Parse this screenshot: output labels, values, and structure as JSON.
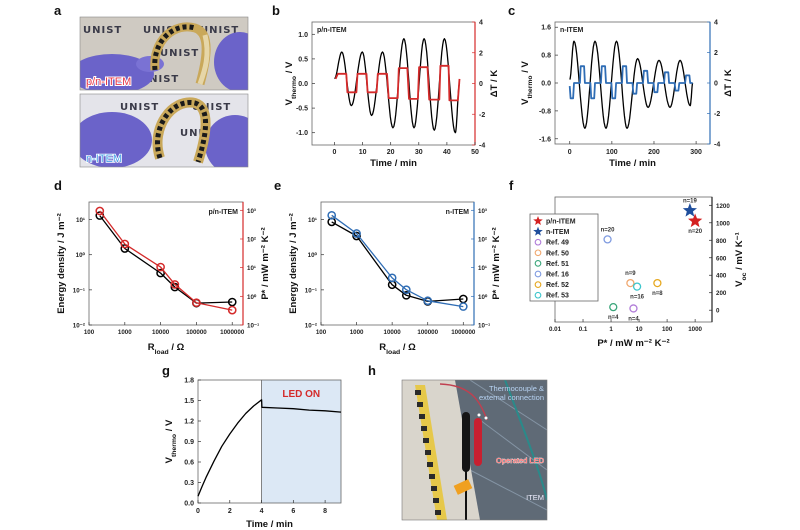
{
  "figure": {
    "panel_labels": {
      "a": "a",
      "b": "b",
      "c": "c",
      "d": "d",
      "e": "e",
      "f": "f",
      "g": "g",
      "h": "h"
    }
  },
  "panel_a": {
    "watermark": "UNIST",
    "photo_top_label": "p/n-ITEM",
    "photo_top_label_color": "#e8394a",
    "photo_bottom_label": "n-ITEM",
    "photo_bottom_label_color": "#4aa0e8"
  },
  "panel_h": {
    "thermocouple_line1": "Thermocouple &",
    "thermocouple_line2": "external connection",
    "led_label": "Operated LED",
    "item_label": "ITEM"
  },
  "chart_data": [
    {
      "panel": "b",
      "type": "line",
      "inset_label": "p/n-ITEM",
      "xlabel": {
        "base": "Time / min"
      },
      "ylabel": {
        "base": "V",
        "sub": "thermo",
        "tail": " / V"
      },
      "y2label": {
        "base": "ΔT / K"
      },
      "xlim": [
        -8,
        50
      ],
      "ylim": [
        -1.25,
        1.25
      ],
      "y2lim": [
        -4,
        4
      ],
      "xticks": [
        0,
        10,
        20,
        30,
        40,
        50
      ],
      "xtick_labels": [
        "0",
        "10",
        "20",
        "30",
        "40",
        "50"
      ],
      "yticks": [
        -1,
        -0.5,
        0,
        0.5,
        1
      ],
      "ytick_labels": [
        "-1.0",
        "-0.5",
        "0.0",
        "0.5",
        "1.0"
      ],
      "y2ticks": [
        -4,
        -2,
        0,
        2,
        4
      ],
      "y2tick_labels": [
        "-4",
        "-2",
        "0",
        "2",
        "4"
      ],
      "y2_color": "#d42a2a",
      "series": [
        {
          "axis": "left",
          "color": "#000000",
          "x": [
            0,
            2.6,
            6.0,
            9.9,
            13.2,
            17.1,
            20.8,
            24.7,
            28.3,
            31.9,
            35.5,
            39.1,
            43.0,
            44.5
          ],
          "y": [
            0.1,
            0.64,
            -0.45,
            0.64,
            -0.65,
            0.64,
            -0.9,
            0.91,
            -0.9,
            0.91,
            -0.95,
            0.91,
            -1.0,
            0.0
          ]
        },
        {
          "axis": "right",
          "color": "#d42a2a",
          "x": [
            0.4,
            1.2,
            4.2,
            4.6,
            7.8,
            8.2,
            11.4,
            11.8,
            15.0,
            15.4,
            18.7,
            19.3,
            22.5,
            22.9,
            25.9,
            26.5,
            29.7,
            30.1,
            33.1,
            33.7,
            37.3,
            37.7,
            40.6,
            40.9,
            43.9,
            44.5
          ],
          "y": [
            0.3,
            0.63,
            0.63,
            -0.57,
            -0.57,
            0.63,
            0.63,
            -0.57,
            -0.57,
            0.63,
            0.63,
            -0.95,
            -0.95,
            1.0,
            1.0,
            -1.0,
            -1.0,
            1.06,
            1.06,
            -1.05,
            -1.05,
            1.15,
            1.15,
            -1.1,
            -1.1,
            0.3
          ]
        }
      ]
    },
    {
      "panel": "c",
      "type": "line",
      "inset_label": "n-ITEM",
      "xlabel": {
        "base": "Time / min"
      },
      "ylabel": {
        "base": "V",
        "sub": "thermo",
        "tail": " / V"
      },
      "y2label": {
        "base": "ΔT / K"
      },
      "xlim": [
        -35,
        333
      ],
      "ylim": [
        -1.75,
        1.75
      ],
      "y2lim": [
        -4,
        4
      ],
      "xticks": [
        0,
        100,
        200,
        300
      ],
      "xtick_labels": [
        "0",
        "100",
        "200",
        "300"
      ],
      "yticks": [
        -1.6,
        -0.8,
        0,
        0.8,
        1.6
      ],
      "ytick_labels": [
        "-1.6",
        "-0.8",
        "0.0",
        "0.8",
        "1.6"
      ],
      "y2ticks": [
        -4,
        -2,
        0,
        2,
        4
      ],
      "y2tick_labels": [
        "-4",
        "-2",
        "0",
        "2",
        "4"
      ],
      "y2_color": "#2f6db5",
      "series": [
        {
          "axis": "left",
          "color": "#000000",
          "x": [
            0,
            10,
            36,
            60,
            86,
            111,
            136,
            161,
            186,
            212,
            238,
            262,
            286,
            292
          ],
          "y": [
            0.1,
            1.2,
            -1.3,
            1.2,
            -1.3,
            1.2,
            -1.3,
            0.7,
            -0.7,
            0.65,
            -0.7,
            0.65,
            -0.65,
            0.0
          ]
        },
        {
          "axis": "right",
          "color": "#2f6db5",
          "x": [
            0,
            2,
            8,
            10,
            24,
            26,
            34,
            36,
            49,
            51,
            58,
            60,
            74,
            76,
            84,
            86,
            99,
            101,
            108,
            110,
            124,
            126,
            134,
            136,
            149,
            151,
            158,
            160,
            174,
            176,
            184,
            186,
            199,
            201,
            208,
            210,
            224,
            226,
            234,
            236,
            249,
            251,
            258,
            260,
            274,
            276,
            284,
            286,
            292
          ],
          "y": [
            -0.2,
            -1.0,
            -1.0,
            0,
            0,
            1.1,
            1.1,
            0,
            0,
            -1.0,
            -1.0,
            0,
            0,
            1.1,
            1.1,
            0,
            0,
            -1.0,
            -1.0,
            0,
            0,
            1.1,
            1.1,
            0,
            0,
            -0.7,
            -0.7,
            0,
            0,
            0.8,
            0.8,
            0,
            0,
            -0.6,
            -0.6,
            0,
            0,
            0.7,
            0.7,
            0,
            0,
            -0.5,
            -0.5,
            0,
            0,
            0.5,
            0.5,
            0,
            0
          ]
        }
      ]
    },
    {
      "panel": "d",
      "type": "line",
      "inset_label": "p/n-ITEM",
      "xlabel": {
        "base": "R",
        "sub": "load",
        "tail": " / Ω"
      },
      "ylabel": {
        "base": "Energy density / J m⁻²"
      },
      "y2label": {
        "base": "P* / mW m⁻² K⁻²"
      },
      "xscale": "log",
      "yscale": "log",
      "y2scale": "log",
      "xlim": [
        100,
        2000000
      ],
      "ylim": [
        0.01,
        31.6
      ],
      "y2lim": [
        0.1,
        1950
      ],
      "xticks": [
        100,
        1000,
        10000,
        100000,
        1000000
      ],
      "xtick_labels": [
        "100",
        "1000",
        "10000",
        "100000",
        "1000000"
      ],
      "yticks": [
        0.01,
        0.1,
        1,
        10
      ],
      "ytick_labels": [
        "10⁻²",
        "10⁻¹",
        "10⁰",
        "10¹"
      ],
      "y2ticks": [
        0.1,
        1,
        10,
        100,
        1000
      ],
      "y2tick_labels": [
        "10⁻¹",
        "10⁰",
        "10¹",
        "10²",
        "10³"
      ],
      "y2_color": "#d42a2a",
      "series": [
        {
          "axis": "left",
          "color": "#000000",
          "marker": "open-circle",
          "x": [
            200,
            1000,
            10000,
            25000,
            100000,
            1000000
          ],
          "y": [
            13,
            1.5,
            0.3,
            0.12,
            0.042,
            0.045
          ]
        },
        {
          "axis": "right",
          "color": "#d42a2a",
          "marker": "open-circle",
          "x": [
            200,
            1000,
            10000,
            25000,
            100000,
            1000000
          ],
          "y": [
            950,
            67,
            10.5,
            2.6,
            0.6,
            0.33
          ]
        }
      ]
    },
    {
      "panel": "e",
      "type": "line",
      "inset_label": "n-ITEM",
      "xlabel": {
        "base": "R",
        "sub": "load",
        "tail": " / Ω"
      },
      "ylabel": {
        "base": "Energy density / J m⁻²"
      },
      "y2label": {
        "base": "P* / mW m⁻² K⁻²"
      },
      "xscale": "log",
      "yscale": "log",
      "y2scale": "log",
      "xlim": [
        100,
        2000000
      ],
      "ylim": [
        0.01,
        31.6
      ],
      "y2lim": [
        0.1,
        1950
      ],
      "xticks": [
        100,
        1000,
        10000,
        100000,
        1000000
      ],
      "xtick_labels": [
        "100",
        "1000",
        "10000",
        "100000",
        "1000000"
      ],
      "yticks": [
        0.01,
        0.1,
        1,
        10
      ],
      "ytick_labels": [
        "10⁻²",
        "10⁻¹",
        "10⁰",
        "10¹"
      ],
      "y2ticks": [
        0.1,
        1,
        10,
        100,
        1000
      ],
      "y2tick_labels": [
        "10⁻¹",
        "10⁰",
        "10¹",
        "10²",
        "10³"
      ],
      "y2_color": "#2f6db5",
      "series": [
        {
          "axis": "left",
          "color": "#000000",
          "marker": "open-circle",
          "x": [
            200,
            1000,
            10000,
            25000,
            100000,
            1000000
          ],
          "y": [
            8.6,
            3.4,
            0.14,
            0.07,
            0.047,
            0.055
          ]
        },
        {
          "axis": "right",
          "color": "#2f6db5",
          "marker": "open-circle",
          "x": [
            200,
            1000,
            10000,
            25000,
            100000,
            1000000
          ],
          "y": [
            670,
            155,
            4.4,
            1.7,
            0.7,
            0.44
          ]
        }
      ]
    },
    {
      "panel": "f",
      "type": "scatter",
      "xlabel": {
        "base": "P* / mW m⁻² K⁻²"
      },
      "y2label": {
        "base": "V",
        "sub": "oc",
        "tail": " / mV K⁻¹"
      },
      "xscale": "log",
      "xlim": [
        0.01,
        4000
      ],
      "y2lim": [
        -135,
        1295
      ],
      "xticks": [
        0.01,
        0.1,
        1,
        10,
        100,
        1000
      ],
      "xtick_labels": [
        "0.01",
        "0.1",
        "1",
        "10",
        "100",
        "1000"
      ],
      "y2ticks": [
        0,
        200,
        400,
        600,
        800,
        1000,
        1200
      ],
      "y2tick_labels": [
        "0",
        "200",
        "400",
        "600",
        "800",
        "1000",
        "1200"
      ],
      "y2_color": "#222222",
      "legend_placement": "left",
      "points": [
        {
          "name": "p/n-ITEM",
          "marker": "star",
          "color": "#d42020",
          "x": 1000,
          "y": 1020,
          "label": "n=20",
          "label_side": "below"
        },
        {
          "name": "n-ITEM",
          "marker": "star",
          "color": "#1f4e9c",
          "x": 650,
          "y": 1140,
          "label": "n=19",
          "label_side": "above"
        },
        {
          "name": "Ref. 49",
          "marker": "open-circle",
          "color": "#b07cd8",
          "x": 6.3,
          "y": 20,
          "label": "n=4",
          "label_side": "below"
        },
        {
          "name": "Ref. 50",
          "marker": "open-circle",
          "color": "#f0a870",
          "x": 4.9,
          "y": 310,
          "label": "n=9",
          "label_side": "above"
        },
        {
          "name": "Ref. 51",
          "marker": "open-circle",
          "color": "#3aa57a",
          "x": 1.2,
          "y": 35,
          "label": "n=4",
          "label_side": "below"
        },
        {
          "name": "Ref. 16",
          "marker": "open-circle",
          "color": "#7f9be0",
          "x": 0.75,
          "y": 810,
          "label": "n=20",
          "label_side": "above"
        },
        {
          "name": "Ref. 52",
          "marker": "open-circle",
          "color": "#e6a820",
          "x": 45,
          "y": 310,
          "label": "n=8",
          "label_side": "below"
        },
        {
          "name": "Ref. 53",
          "marker": "open-circle",
          "color": "#3ec6cc",
          "x": 8.5,
          "y": 270,
          "label": "n=16",
          "label_side": "below"
        }
      ]
    },
    {
      "panel": "g",
      "type": "line",
      "xlabel": {
        "base": "Time / min"
      },
      "ylabel": {
        "base": "V",
        "sub": "thermo",
        "tail": " / V"
      },
      "xlim": [
        0,
        9
      ],
      "ylim": [
        0,
        1.8
      ],
      "xticks": [
        0,
        2,
        4,
        6,
        8
      ],
      "xtick_labels": [
        "0",
        "2",
        "4",
        "6",
        "8"
      ],
      "yticks": [
        0,
        0.3,
        0.6,
        0.9,
        1.2,
        1.5,
        1.8
      ],
      "ytick_labels": [
        "0.0",
        "0.3",
        "0.6",
        "0.9",
        "1.2",
        "1.5",
        "1.8"
      ],
      "shaded_region": {
        "x": [
          4,
          9
        ],
        "color": "#dce8f5",
        "label": "LED ON",
        "label_color": "#d42a2a"
      },
      "series": [
        {
          "axis": "left",
          "color": "#000000",
          "x": [
            0,
            0.25,
            0.5,
            1,
            1.5,
            2,
            2.5,
            3,
            3.5,
            4,
            4.02,
            5,
            6,
            7,
            8,
            9
          ],
          "y": [
            0.1,
            0.24,
            0.37,
            0.61,
            0.83,
            1.01,
            1.17,
            1.31,
            1.42,
            1.51,
            1.4,
            1.39,
            1.38,
            1.36,
            1.35,
            1.33
          ]
        }
      ]
    }
  ]
}
